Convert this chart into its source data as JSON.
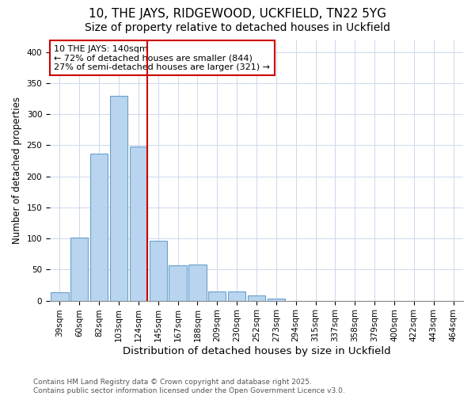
{
  "title1": "10, THE JAYS, RIDGEWOOD, UCKFIELD, TN22 5YG",
  "title2": "Size of property relative to detached houses in Uckfield",
  "xlabel": "Distribution of detached houses by size in Uckfield",
  "ylabel": "Number of detached properties",
  "categories": [
    "39sqm",
    "60sqm",
    "82sqm",
    "103sqm",
    "124sqm",
    "145sqm",
    "167sqm",
    "188sqm",
    "209sqm",
    "230sqm",
    "252sqm",
    "273sqm",
    "294sqm",
    "315sqm",
    "337sqm",
    "358sqm",
    "379sqm",
    "400sqm",
    "422sqm",
    "443sqm",
    "464sqm"
  ],
  "values": [
    13,
    101,
    236,
    330,
    248,
    96,
    57,
    58,
    15,
    15,
    8,
    3,
    0,
    0,
    0,
    0,
    0,
    0,
    0,
    0,
    0
  ],
  "bar_color": "#b8d4ee",
  "bar_edge_color": "#6aa0cc",
  "vline_color": "#cc0000",
  "annotation_text": "10 THE JAYS: 140sqm\n← 72% of detached houses are smaller (844)\n27% of semi-detached houses are larger (321) →",
  "annotation_box_color": "#cc0000",
  "footer": "Contains HM Land Registry data © Crown copyright and database right 2025.\nContains public sector information licensed under the Open Government Licence v3.0.",
  "ylim": [
    0,
    420
  ],
  "title1_fontsize": 11,
  "title2_fontsize": 10,
  "xlabel_fontsize": 9.5,
  "ylabel_fontsize": 8.5,
  "tick_fontsize": 7.5,
  "annotation_fontsize": 8,
  "footer_fontsize": 6.5,
  "bg_color": "#ffffff",
  "grid_color": "#ccd8ee"
}
